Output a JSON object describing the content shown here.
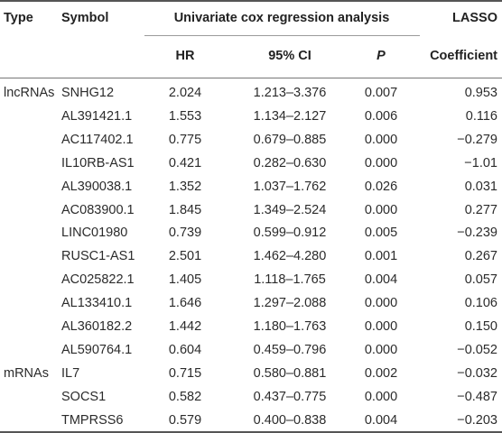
{
  "headers": {
    "type": "Type",
    "symbol": "Symbol",
    "univariate": "Univariate cox regression analysis",
    "lasso_line1": "LASSO",
    "lasso_line2": "Coefficient",
    "hr": "HR",
    "ci": "95% CI",
    "p": "P"
  },
  "rows": [
    {
      "type": "lncRNAs",
      "symbol": "SNHG12",
      "hr": "2.024",
      "ci": "1.213–3.376",
      "p": "0.007",
      "coef": "0.953"
    },
    {
      "type": "",
      "symbol": "AL391421.1",
      "hr": "1.553",
      "ci": "1.134–2.127",
      "p": "0.006",
      "coef": "0.116"
    },
    {
      "type": "",
      "symbol": "AC117402.1",
      "hr": "0.775",
      "ci": "0.679–0.885",
      "p": "0.000",
      "coef": "−0.279"
    },
    {
      "type": "",
      "symbol": "IL10RB-AS1",
      "hr": "0.421",
      "ci": "0.282–0.630",
      "p": "0.000",
      "coef": "−1.01"
    },
    {
      "type": "",
      "symbol": "AL390038.1",
      "hr": "1.352",
      "ci": "1.037–1.762",
      "p": "0.026",
      "coef": "0.031"
    },
    {
      "type": "",
      "symbol": "AC083900.1",
      "hr": "1.845",
      "ci": "1.349–2.524",
      "p": "0.000",
      "coef": "0.277"
    },
    {
      "type": "",
      "symbol": "LINC01980",
      "hr": "0.739",
      "ci": "0.599–0.912",
      "p": "0.005",
      "coef": "−0.239"
    },
    {
      "type": "",
      "symbol": "RUSC1-AS1",
      "hr": "2.501",
      "ci": "1.462–4.280",
      "p": "0.001",
      "coef": "0.267"
    },
    {
      "type": "",
      "symbol": "AC025822.1",
      "hr": "1.405",
      "ci": "1.118–1.765",
      "p": "0.004",
      "coef": "0.057"
    },
    {
      "type": "",
      "symbol": "AL133410.1",
      "hr": "1.646",
      "ci": "1.297–2.088",
      "p": "0.000",
      "coef": "0.106"
    },
    {
      "type": "",
      "symbol": "AL360182.2",
      "hr": "1.442",
      "ci": "1.180–1.763",
      "p": "0.000",
      "coef": "0.150"
    },
    {
      "type": "",
      "symbol": "AL590764.1",
      "hr": "0.604",
      "ci": "0.459–0.796",
      "p": "0.000",
      "coef": "−0.052"
    },
    {
      "type": "mRNAs",
      "symbol": "IL7",
      "hr": "0.715",
      "ci": "0.580–0.881",
      "p": "0.002",
      "coef": "−0.032"
    },
    {
      "type": "",
      "symbol": "SOCS1",
      "hr": "0.582",
      "ci": "0.437–0.775",
      "p": "0.000",
      "coef": "−0.487"
    },
    {
      "type": "",
      "symbol": "TMPRSS6",
      "hr": "0.579",
      "ci": "0.400–0.838",
      "p": "0.004",
      "coef": "−0.203"
    }
  ]
}
